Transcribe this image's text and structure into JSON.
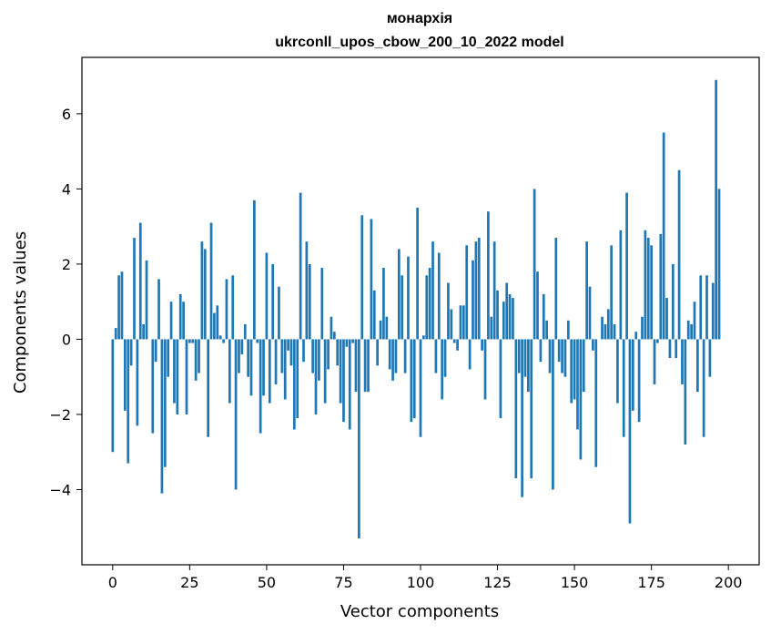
{
  "chart_data": {
    "type": "bar",
    "title_line1": "монархія",
    "title_line2": "ukrconll_upos_cbow_200_10_2022 model",
    "xlabel": "Vector components",
    "ylabel": "Components values",
    "xlim": [
      -10,
      210
    ],
    "ylim": [
      -6.0,
      7.5
    ],
    "x_ticks": [
      0,
      25,
      50,
      75,
      100,
      125,
      150,
      175,
      200
    ],
    "y_ticks": [
      -4,
      -2,
      0,
      2,
      4,
      6
    ],
    "bar_color": "#1f77b4",
    "values": [
      -3.0,
      0.3,
      1.7,
      1.8,
      -1.9,
      -3.3,
      -0.7,
      2.7,
      -2.3,
      3.1,
      0.4,
      2.1,
      0.0,
      -2.5,
      -0.6,
      1.6,
      -4.1,
      -3.4,
      -1.0,
      1.0,
      -1.7,
      -2.0,
      1.2,
      1.0,
      -2.0,
      -0.1,
      -0.1,
      -1.1,
      -0.9,
      2.6,
      2.4,
      -2.6,
      3.1,
      0.7,
      0.9,
      0.1,
      -0.1,
      1.6,
      -1.7,
      1.7,
      -4.0,
      -0.9,
      -0.4,
      0.4,
      -1.0,
      -1.5,
      3.7,
      -0.1,
      -2.5,
      -1.5,
      2.3,
      -1.7,
      2.0,
      -1.2,
      1.4,
      -0.9,
      -1.6,
      -0.3,
      -0.7,
      -2.4,
      -2.1,
      3.9,
      -0.6,
      2.6,
      2.0,
      -0.9,
      -2.0,
      -1.1,
      1.9,
      -1.7,
      -0.8,
      0.6,
      0.2,
      -0.7,
      -1.7,
      -2.2,
      -0.2,
      -2.4,
      -0.1,
      -1.4,
      -5.3,
      3.3,
      -1.4,
      -1.4,
      3.2,
      1.3,
      -0.7,
      0.5,
      1.9,
      0.6,
      -0.8,
      -1.1,
      -0.9,
      2.4,
      1.7,
      -0.9,
      2.2,
      -2.2,
      -2.1,
      3.5,
      -2.6,
      0.1,
      1.7,
      1.9,
      2.6,
      -0.9,
      2.3,
      -1.6,
      -1.0,
      1.5,
      0.8,
      -0.1,
      -0.3,
      0.9,
      0.9,
      2.5,
      -0.8,
      2.1,
      2.6,
      2.7,
      -0.3,
      -1.6,
      3.4,
      0.6,
      2.6,
      1.3,
      -2.1,
      1.0,
      1.5,
      1.2,
      1.1,
      -3.7,
      -0.9,
      -4.2,
      -1.0,
      -1.4,
      -3.7,
      4.0,
      1.8,
      -0.6,
      1.2,
      0.5,
      -0.9,
      -4.0,
      2.7,
      -0.6,
      -0.9,
      -1.0,
      0.5,
      -1.7,
      -1.6,
      -2.4,
      -3.2,
      -1.4,
      2.6,
      1.4,
      -0.3,
      -3.4,
      0.0,
      0.6,
      0.4,
      0.8,
      2.5,
      0.4,
      -1.7,
      2.9,
      -2.6,
      3.9,
      -4.9,
      -1.9,
      0.2,
      -2.2,
      0.6,
      2.9,
      2.7,
      2.5,
      -1.2,
      -0.1,
      2.8,
      5.5,
      1.1,
      -0.5,
      2.0,
      -0.5,
      4.5,
      -1.2,
      -2.8,
      0.5,
      0.4,
      1.0,
      -1.4,
      1.7,
      -2.6,
      1.7,
      -1.0,
      1.5,
      6.9,
      4.0
    ]
  }
}
